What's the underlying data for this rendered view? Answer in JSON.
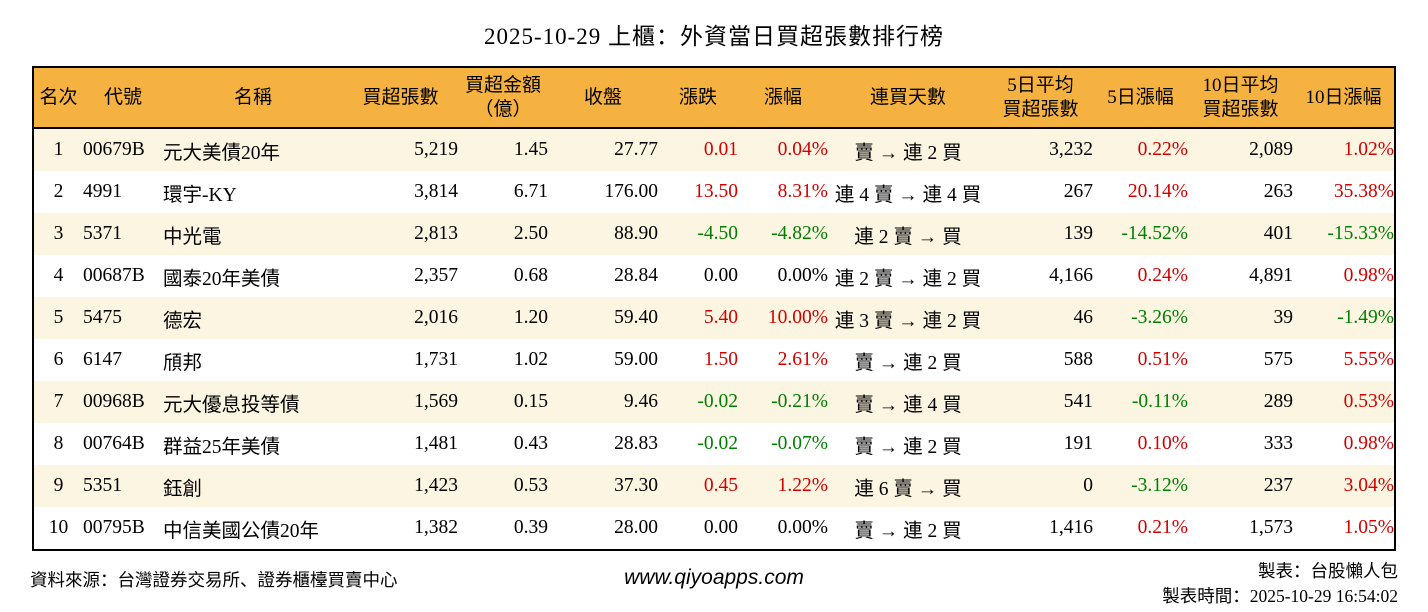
{
  "title": "2025-10-29 上櫃：外資當日買超張數排行榜",
  "colors": {
    "header_bg": "#F5B240",
    "row_alt_bg": "#FCF5E2",
    "row_bg": "#FFFFFF",
    "up_red": "#D40000",
    "down_green": "#008000",
    "border": "#000000"
  },
  "chart_data": {
    "type": "table",
    "title": "2025-10-29 上櫃：外資當日買超張數排行榜",
    "columns": [
      {
        "key": "rank",
        "label": "名次",
        "align": "center"
      },
      {
        "key": "code",
        "label": "代號",
        "align": "left"
      },
      {
        "key": "name",
        "label": "名稱",
        "align": "left"
      },
      {
        "key": "net_buy",
        "label": "買超張數",
        "align": "right"
      },
      {
        "key": "amount",
        "label": "買超金額\n（億）",
        "align": "right"
      },
      {
        "key": "close",
        "label": "收盤",
        "align": "right"
      },
      {
        "key": "change",
        "label": "漲跌",
        "align": "right",
        "sign_color": true
      },
      {
        "key": "change_pct",
        "label": "漲幅",
        "align": "right",
        "sign_color": true
      },
      {
        "key": "streak",
        "label": "連買天數",
        "align": "center"
      },
      {
        "key": "avg5",
        "label": "5日平均\n買超張數",
        "align": "right"
      },
      {
        "key": "pct5",
        "label": "5日漲幅",
        "align": "right",
        "sign_color": true
      },
      {
        "key": "avg10",
        "label": "10日平均\n買超張數",
        "align": "right"
      },
      {
        "key": "pct10",
        "label": "10日漲幅",
        "align": "right",
        "sign_color": true
      }
    ],
    "rows": [
      {
        "rank": "1",
        "code": "00679B",
        "name": "元大美債20年",
        "net_buy": "5,219",
        "amount": "1.45",
        "close": "27.77",
        "change": "0.01",
        "change_pct": "0.04%",
        "streak": "賣 → 連 2 買",
        "avg5": "3,232",
        "pct5": "0.22%",
        "avg10": "2,089",
        "pct10": "1.02%"
      },
      {
        "rank": "2",
        "code": "4991",
        "name": "環宇-KY",
        "net_buy": "3,814",
        "amount": "6.71",
        "close": "176.00",
        "change": "13.50",
        "change_pct": "8.31%",
        "streak": "連 4 賣 → 連 4 買",
        "avg5": "267",
        "pct5": "20.14%",
        "avg10": "263",
        "pct10": "35.38%"
      },
      {
        "rank": "3",
        "code": "5371",
        "name": "中光電",
        "net_buy": "2,813",
        "amount": "2.50",
        "close": "88.90",
        "change": "-4.50",
        "change_pct": "-4.82%",
        "streak": "連 2 賣 → 買",
        "avg5": "139",
        "pct5": "-14.52%",
        "avg10": "401",
        "pct10": "-15.33%"
      },
      {
        "rank": "4",
        "code": "00687B",
        "name": "國泰20年美債",
        "net_buy": "2,357",
        "amount": "0.68",
        "close": "28.84",
        "change": "0.00",
        "change_pct": "0.00%",
        "streak": "連 2 賣 → 連 2 買",
        "avg5": "4,166",
        "pct5": "0.24%",
        "avg10": "4,891",
        "pct10": "0.98%"
      },
      {
        "rank": "5",
        "code": "5475",
        "name": "德宏",
        "net_buy": "2,016",
        "amount": "1.20",
        "close": "59.40",
        "change": "5.40",
        "change_pct": "10.00%",
        "streak": "連 3 賣 → 連 2 買",
        "avg5": "46",
        "pct5": "-3.26%",
        "avg10": "39",
        "pct10": "-1.49%"
      },
      {
        "rank": "6",
        "code": "6147",
        "name": "頎邦",
        "net_buy": "1,731",
        "amount": "1.02",
        "close": "59.00",
        "change": "1.50",
        "change_pct": "2.61%",
        "streak": "賣 → 連 2 買",
        "avg5": "588",
        "pct5": "0.51%",
        "avg10": "575",
        "pct10": "5.55%"
      },
      {
        "rank": "7",
        "code": "00968B",
        "name": "元大優息投等債",
        "net_buy": "1,569",
        "amount": "0.15",
        "close": "9.46",
        "change": "-0.02",
        "change_pct": "-0.21%",
        "streak": "賣 → 連 4 買",
        "avg5": "541",
        "pct5": "-0.11%",
        "avg10": "289",
        "pct10": "0.53%"
      },
      {
        "rank": "8",
        "code": "00764B",
        "name": "群益25年美債",
        "net_buy": "1,481",
        "amount": "0.43",
        "close": "28.83",
        "change": "-0.02",
        "change_pct": "-0.07%",
        "streak": "賣 → 連 2 買",
        "avg5": "191",
        "pct5": "0.10%",
        "avg10": "333",
        "pct10": "0.98%"
      },
      {
        "rank": "9",
        "code": "5351",
        "name": "鈺創",
        "net_buy": "1,423",
        "amount": "0.53",
        "close": "37.30",
        "change": "0.45",
        "change_pct": "1.22%",
        "streak": "連 6 賣 → 買",
        "avg5": "0",
        "pct5": "-3.12%",
        "avg10": "237",
        "pct10": "3.04%"
      },
      {
        "rank": "10",
        "code": "00795B",
        "name": "中信美國公債20年",
        "net_buy": "1,382",
        "amount": "0.39",
        "close": "28.00",
        "change": "0.00",
        "change_pct": "0.00%",
        "streak": "賣 → 連 2 買",
        "avg5": "1,416",
        "pct5": "0.21%",
        "avg10": "1,573",
        "pct10": "1.05%"
      }
    ],
    "layout_hints": {
      "up_color_rule": "positive values red, negative values green, zero black",
      "row_striping": "odd rows cream, even rows white",
      "header_fill": "orange"
    }
  },
  "footer": {
    "source": "資料來源：台灣證券交易所、證券櫃檯買賣中心",
    "website": "www.qiyoapps.com",
    "maker": "製表：台股懶人包",
    "made_at": "製表時間：2025-10-29 16:54:02"
  }
}
